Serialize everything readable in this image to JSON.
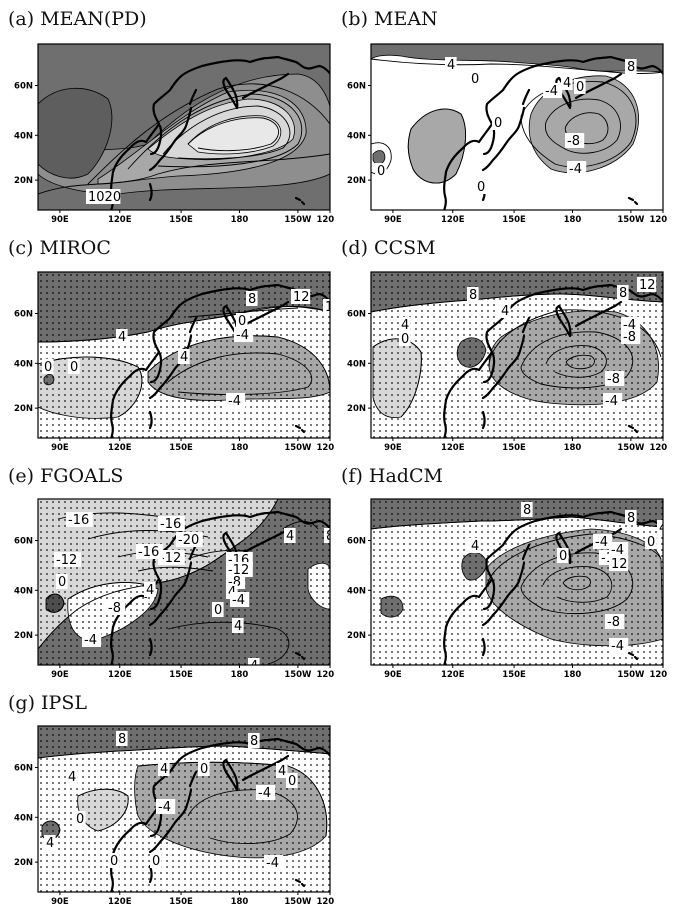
{
  "panels": [
    {
      "id": "a",
      "title": "(a) MEAN(PD)",
      "stippled": false,
      "contour_labels": [
        "1020"
      ]
    },
    {
      "id": "b",
      "title": "(b) MEAN",
      "stippled": false,
      "contour_labels": [
        "4",
        "8",
        "0",
        "-4",
        "4",
        "0",
        "-8",
        "-4",
        "0",
        "0",
        "0"
      ]
    },
    {
      "id": "c",
      "title": "(c) MIROC",
      "stippled": true,
      "contour_labels": [
        "8",
        "12",
        "12",
        "4",
        "-4",
        "0",
        "4",
        "0",
        "0",
        "-4"
      ]
    },
    {
      "id": "d",
      "title": "(d) CCSM",
      "stippled": true,
      "contour_labels": [
        "8",
        "12",
        "8",
        "4",
        "4",
        "0",
        "-4",
        "-8",
        "-8",
        "-4"
      ]
    },
    {
      "id": "e",
      "title": "(e) FGOALS",
      "stippled": true,
      "contour_labels": [
        "-16",
        "-16",
        "-20",
        "-12",
        "-16",
        "-12",
        "-16",
        "-12",
        "-8",
        "4",
        "8",
        "4",
        "4",
        "-4",
        "-8",
        "-4",
        "0",
        "0",
        "4",
        "4"
      ]
    },
    {
      "id": "f",
      "title": "(f) HadCM",
      "stippled": true,
      "contour_labels": [
        "8",
        "8",
        "4",
        "4",
        "0",
        "-4",
        "-12",
        "12",
        "-8",
        "-4",
        "0",
        "-4"
      ]
    },
    {
      "id": "g",
      "title": "(g) IPSL",
      "stippled": true,
      "contour_labels": [
        "8",
        "8",
        "4",
        "4",
        "0",
        "4",
        "0",
        "-4",
        "-4",
        "0",
        "0",
        "0",
        "4",
        "-4"
      ]
    }
  ],
  "axes": {
    "lon_ticks": [
      "90E",
      "120E",
      "150E",
      "180",
      "150W",
      "120W"
    ],
    "lat_ticks": [
      "60N",
      "40N",
      "20N"
    ]
  },
  "colors": {
    "dark": "#6f6f6f",
    "mid": "#a8a8a8",
    "light": "#d8d8d8",
    "white": "#ffffff",
    "line": "#000000"
  }
}
